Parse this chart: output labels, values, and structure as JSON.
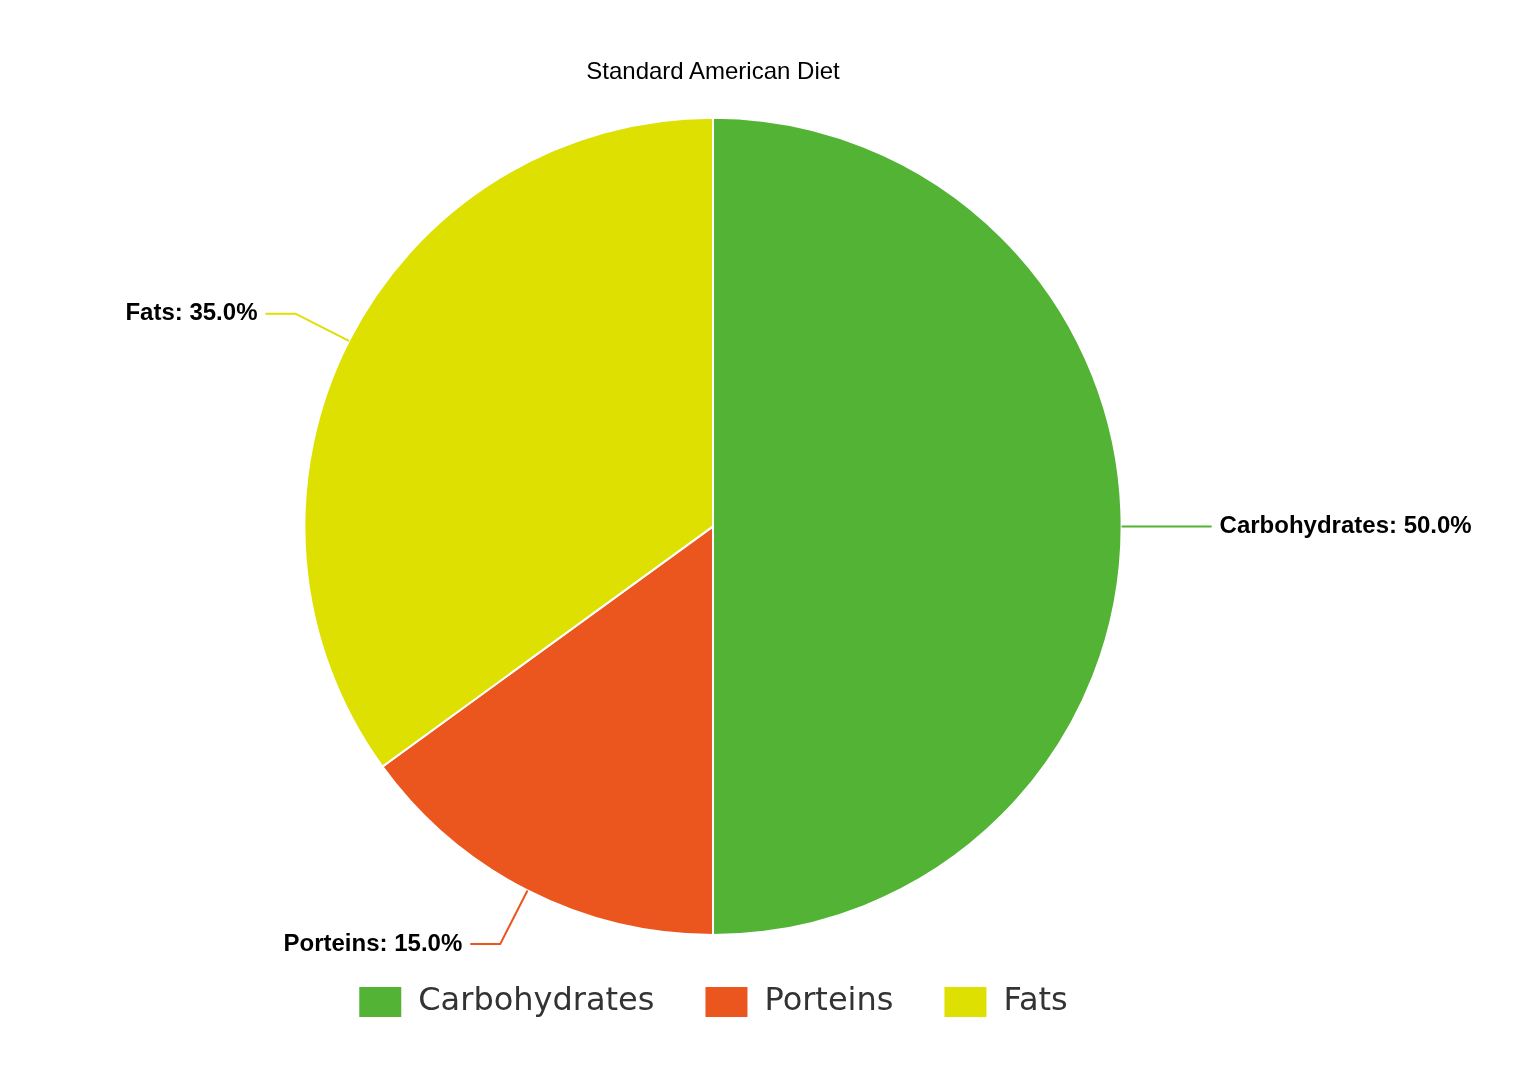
{
  "chart_data": {
    "type": "pie",
    "title": "Standard American Diet",
    "categories": [
      "Carbohydrates",
      "Porteins",
      "Fats"
    ],
    "values": [
      50.0,
      15.0,
      35.0
    ],
    "colors": [
      "#52b334",
      "#ea561e",
      "#dde000"
    ],
    "value_labels": [
      "Carbohydrates: 50.0%",
      "Porteins: 15.0%",
      "Fats: 35.0%"
    ],
    "legend": "bottom"
  }
}
